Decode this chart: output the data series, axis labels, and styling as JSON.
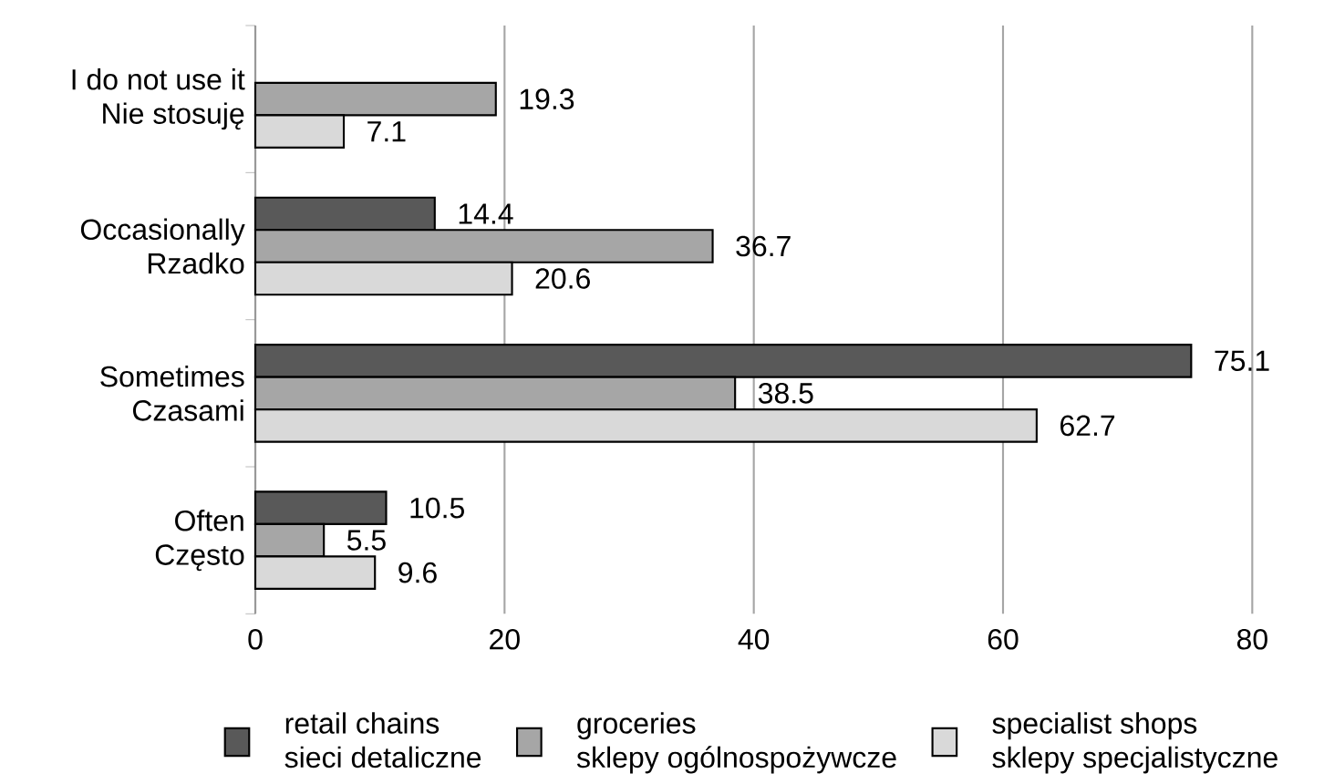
{
  "chart_data": {
    "type": "bar",
    "orientation": "horizontal",
    "categories": [
      "I do not use it\nNie stosuję",
      "Occasionally\nRzadko",
      "Sometimes\nCzasami",
      "Often\nCzęsto"
    ],
    "series": [
      {
        "name": "retail chains\nsieci detaliczne",
        "color": "#595959",
        "values": [
          null,
          14.4,
          75.1,
          10.5
        ]
      },
      {
        "name": "groceries\nsklepy ogólnospożywcze",
        "color": "#a6a6a6",
        "values": [
          19.3,
          36.7,
          38.5,
          5.5
        ]
      },
      {
        "name": "specialist shops\nsklepy specjalistyczne",
        "color": "#d9d9d9",
        "values": [
          7.1,
          20.6,
          62.7,
          9.6
        ]
      }
    ],
    "xlim": [
      0,
      80
    ],
    "xticks": [
      0,
      20,
      40,
      60,
      80
    ],
    "grid": "x",
    "legend": "bottom",
    "data_labels": true
  }
}
